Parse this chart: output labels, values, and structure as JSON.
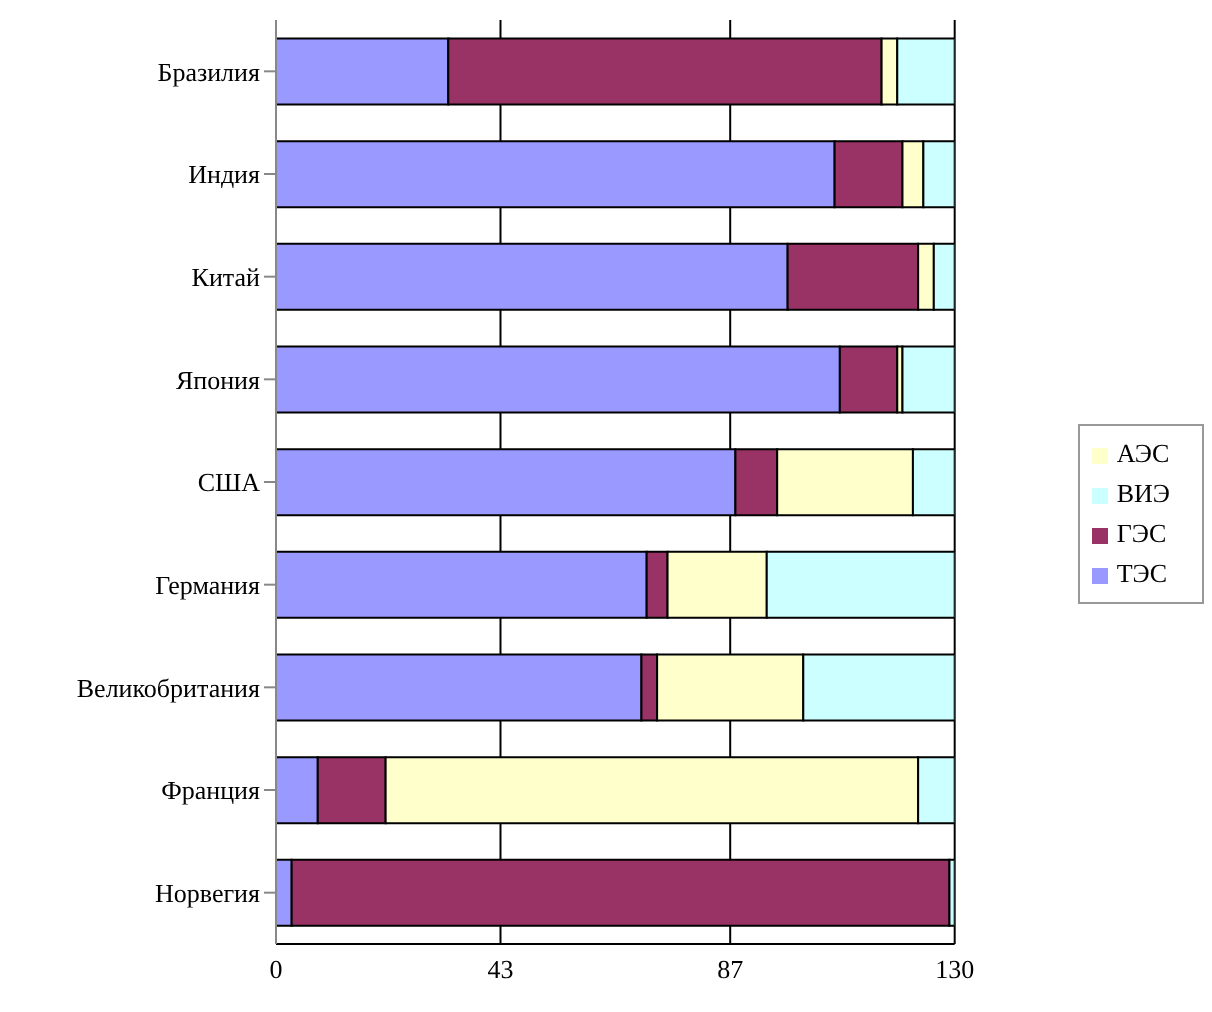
{
  "chart_data": {
    "type": "bar",
    "orientation": "horizontal",
    "stacked": true,
    "categories": [
      "Бразилия",
      "Индия",
      "Китай",
      "Япония",
      "США",
      "Германия",
      "Великобритания",
      "Франция",
      "Норвегия"
    ],
    "series": [
      {
        "name": "ТЭС",
        "color": "#9999ff",
        "values": [
          33,
          107,
          98,
          108,
          88,
          71,
          70,
          8,
          3
        ]
      },
      {
        "name": "ГЭС",
        "color": "#993366",
        "values": [
          83,
          13,
          25,
          11,
          8,
          4,
          3,
          13,
          126
        ]
      },
      {
        "name": "АЭС",
        "color": "#ffffcc",
        "values": [
          3,
          4,
          3,
          1,
          26,
          19,
          28,
          102,
          0
        ]
      },
      {
        "name": "ВИЭ",
        "color": "#ccffff",
        "values": [
          11,
          6,
          4,
          10,
          8,
          36,
          29,
          7,
          1
        ]
      }
    ],
    "xlim": [
      0,
      130
    ],
    "xticks": [
      0,
      43,
      87,
      130
    ],
    "grid": "x",
    "legend": "right"
  }
}
